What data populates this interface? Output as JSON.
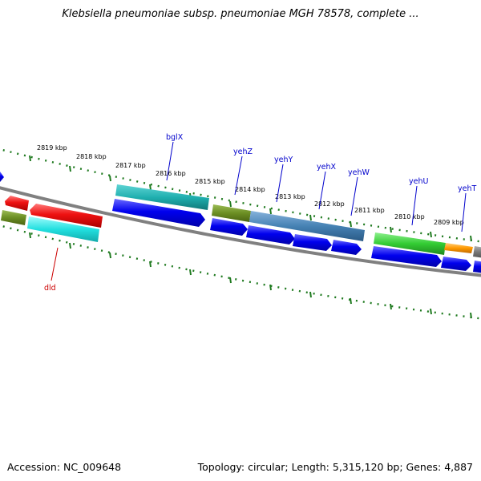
{
  "title": "Klebsiella pneumoniae subsp. pneumoniae MGH 78578, complete ...",
  "footer": {
    "accession": "Accession: NC_009648",
    "topology": "Topology: circular; Length: 5,315,120 bp; Genes: 4,887"
  },
  "kbp_labels": [
    "2819 kbp",
    "2818 kbp",
    "2817 kbp",
    "2816 kbp",
    "2815 kbp",
    "2814 kbp",
    "2813 kbp",
    "2812 kbp",
    "2811 kbp",
    "2810 kbp",
    "2809 kbp"
  ],
  "gene_labels": [
    "bglX",
    "yehZ",
    "yehY",
    "yehX",
    "yehW",
    "yehU",
    "yehT",
    "dld"
  ],
  "colors": {
    "backbone": "#808080",
    "tick": "#1f7a1f",
    "label_blue": "#0000cc",
    "label_red": "#cc0000",
    "cds_blue": "#0000ee",
    "red": "#ee1111",
    "cyan": "#22dddd",
    "teal": "#22bbbb",
    "olive": "#6b8e23",
    "steel": "#4682b4",
    "green": "#33cc33",
    "orange": "#ff9900"
  }
}
